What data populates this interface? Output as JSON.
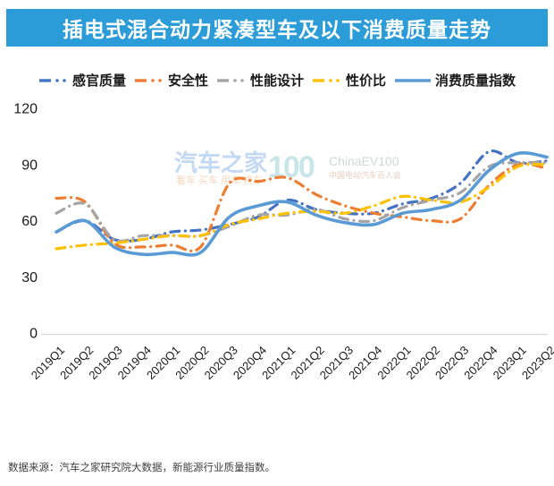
{
  "header": {
    "title": "插电式混合动力紧凑型车及以下消费质量走势",
    "bg_color": "#2B9CD8",
    "text_color": "#FFFFFF"
  },
  "chart_data": {
    "type": "line",
    "smooth": true,
    "grid": false,
    "legend_position": "top",
    "categories": [
      "2019Q1",
      "2019Q2",
      "2019Q3",
      "2019Q4",
      "2020Q1",
      "2020Q2",
      "2020Q3",
      "2020Q4",
      "2021Q1",
      "2021Q2",
      "2021Q3",
      "2021Q4",
      "2022Q1",
      "2022Q2",
      "2022Q3",
      "2022Q4",
      "2023Q1",
      "2023Q2"
    ],
    "series": [
      {
        "name": "感官质量",
        "color": "#4472C4",
        "style": "dashed",
        "values": [
          54,
          60,
          50,
          50,
          54,
          55,
          58,
          62,
          71,
          66,
          64,
          64,
          69,
          72,
          80,
          97,
          91,
          92
        ]
      },
      {
        "name": "安全性",
        "color": "#ED7D31",
        "style": "dashed",
        "values": [
          72,
          70,
          48,
          46,
          47,
          46,
          80,
          81,
          83,
          74,
          68,
          64,
          62,
          60,
          61,
          79,
          90,
          88
        ]
      },
      {
        "name": "性能设计",
        "color": "#A5A5A5",
        "style": "dashed",
        "values": [
          64,
          69,
          50,
          52,
          52,
          52,
          57,
          63,
          63,
          66,
          61,
          60,
          67,
          71,
          75,
          89,
          91,
          91
        ]
      },
      {
        "name": "性价比",
        "color": "#FFC000",
        "style": "dashed",
        "values": [
          45,
          47,
          48,
          50,
          52,
          52,
          58,
          61,
          64,
          65,
          64,
          68,
          73,
          71,
          70,
          78,
          89,
          90
        ]
      },
      {
        "name": "消费质量指数",
        "color": "#5B9BD5",
        "style": "solid",
        "values": [
          54,
          60,
          46,
          42,
          43,
          43,
          62,
          68,
          70,
          63,
          59,
          58,
          64,
          66,
          71,
          87,
          96,
          94
        ]
      }
    ],
    "ylim": [
      0,
      120
    ],
    "yticks": [
      0,
      30,
      60,
      90,
      120
    ],
    "xlabel": "",
    "ylabel": "",
    "axis_color": "#D9D9D9"
  },
  "watermark": {
    "brand": "汽车之家",
    "brand_sub": "看车 买车 用车 换车",
    "logo": "100",
    "org": "ChinaEV100",
    "org_sub": "中国电动汽车百人会"
  },
  "footer": {
    "source": "数据来源：汽车之家研究院大数据，新能源行业质量指数。"
  }
}
